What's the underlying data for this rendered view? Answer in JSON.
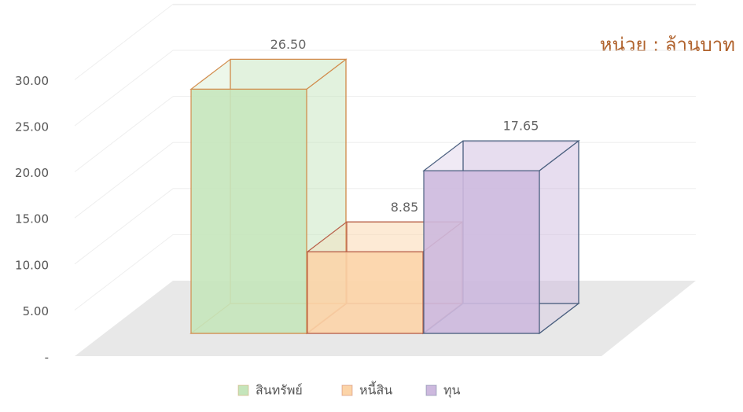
{
  "chart_data": {
    "type": "bar3d",
    "annotation": "หน่วย : ล้านบาท",
    "categories": [
      "สินทรัพย์",
      "หนี้สิน",
      "ทุน"
    ],
    "values": [
      26.5,
      8.85,
      17.65
    ],
    "value_labels": [
      "26.50",
      "8.85",
      "17.65"
    ],
    "colors": [
      "#c5e5bb",
      "#fcd4a8",
      "#cdb9de"
    ],
    "edge_colors": [
      "#d28c4c",
      "#b8604a",
      "#4c6180"
    ],
    "ylim": [
      0,
      30
    ],
    "yticks": [
      {
        "value": 0,
        "label": "-"
      },
      {
        "value": 5,
        "label": "5.00"
      },
      {
        "value": 10,
        "label": "10.00"
      },
      {
        "value": 15,
        "label": "15.00"
      },
      {
        "value": 20,
        "label": "20.00"
      },
      {
        "value": 25,
        "label": "25.00"
      },
      {
        "value": 30,
        "label": "30.00"
      }
    ],
    "grid": true
  }
}
